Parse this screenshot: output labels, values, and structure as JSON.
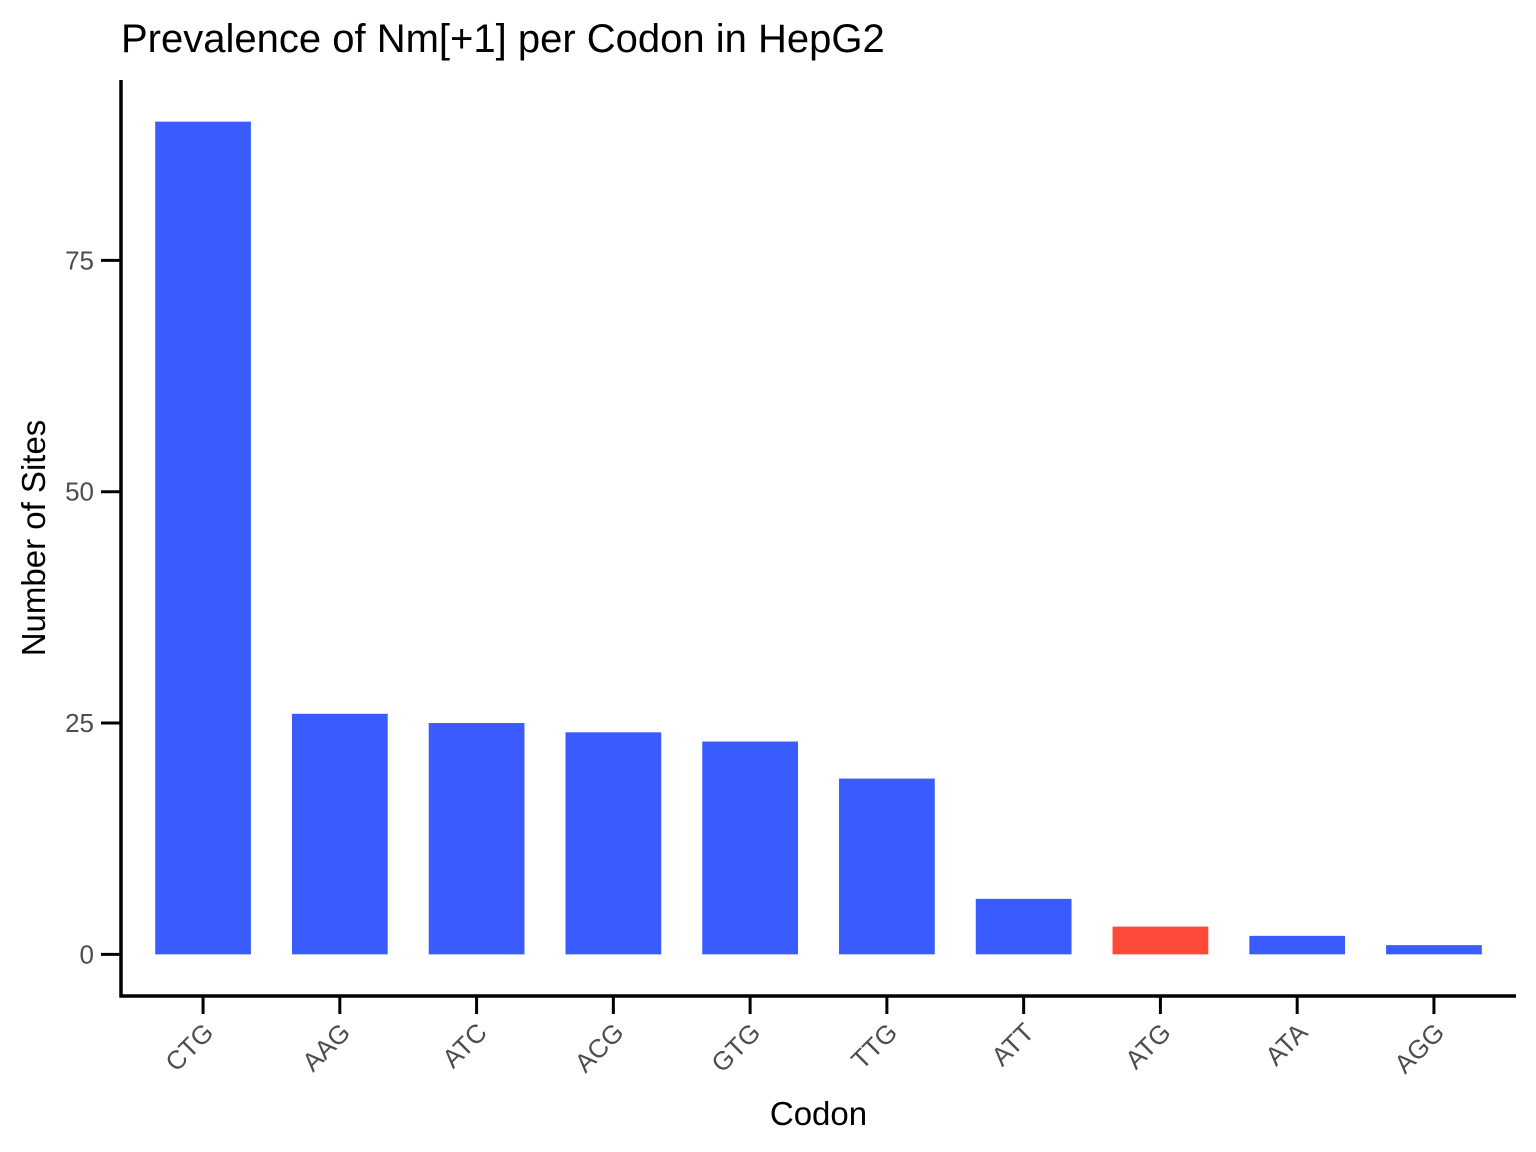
{
  "chart_data": {
    "type": "bar",
    "title": "Prevalence of Nm[+1] per Codon in HepG2",
    "xlabel": "Codon",
    "ylabel": "Number of Sites",
    "categories": [
      "CTG",
      "AAG",
      "ATC",
      "ACG",
      "GTG",
      "TTG",
      "ATT",
      "ATG",
      "ATA",
      "AGG"
    ],
    "values": [
      90,
      26,
      25,
      24,
      23,
      19,
      6,
      3,
      2,
      1
    ],
    "colors": [
      "#3a5cff",
      "#3a5cff",
      "#3a5cff",
      "#3a5cff",
      "#3a5cff",
      "#3a5cff",
      "#3a5cff",
      "#ff4a3a",
      "#3a5cff",
      "#3a5cff"
    ],
    "yticks": [
      0,
      25,
      50,
      75
    ],
    "ylim": [
      -4.5,
      94.5
    ],
    "grid": false,
    "legend": "none"
  }
}
